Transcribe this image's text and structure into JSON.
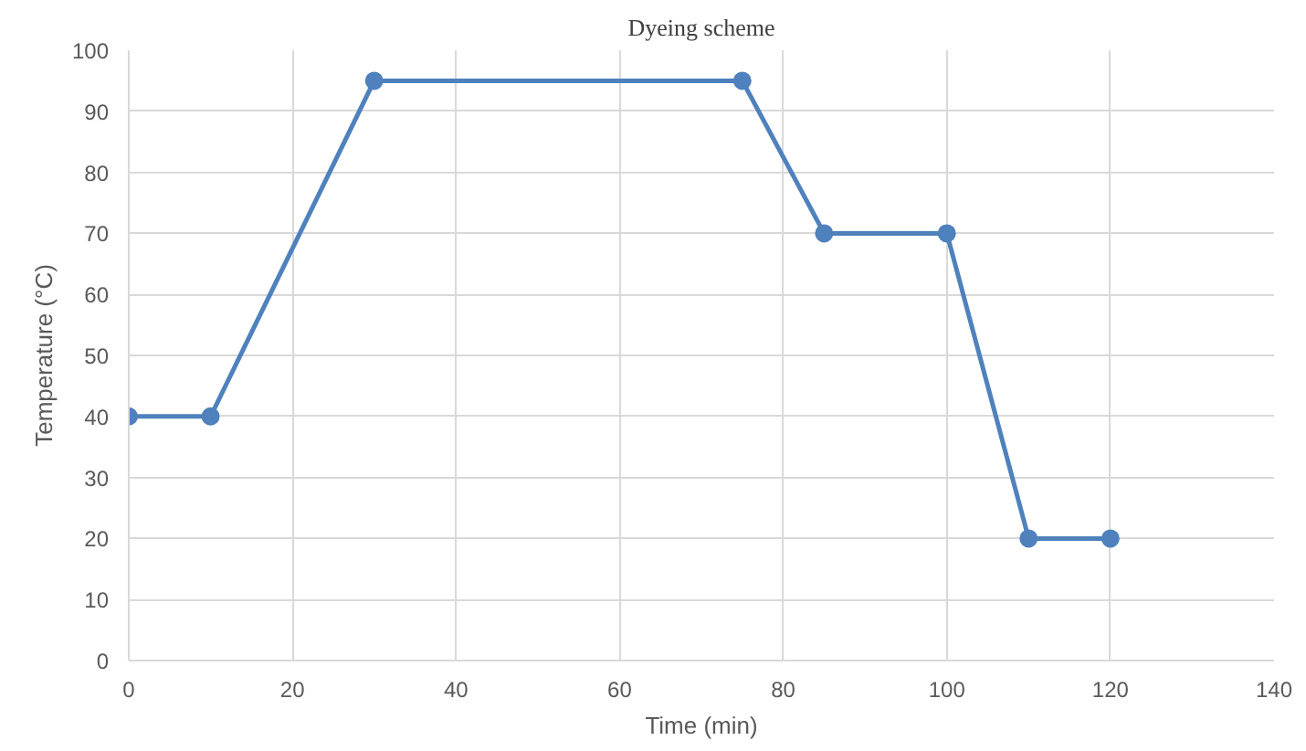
{
  "chart_data": {
    "type": "line",
    "title": "Dyeing scheme",
    "xlabel": "Time (min)",
    "ylabel": "Temperature (°C)",
    "x": [
      0,
      10,
      30,
      75,
      85,
      100,
      110,
      120
    ],
    "series": [
      {
        "color": "#4f81bd",
        "values": [
          40,
          40,
          95,
          95,
          70,
          70,
          20,
          20
        ]
      }
    ],
    "xlim": [
      0,
      140
    ],
    "xticks": [
      0,
      20,
      40,
      60,
      80,
      100,
      120,
      140
    ],
    "ylim": [
      0,
      100
    ],
    "yticks": [
      0,
      10,
      20,
      30,
      40,
      50,
      60,
      70,
      80,
      90,
      100
    ],
    "grid": true,
    "marker": "circle",
    "line_style": "solid"
  }
}
